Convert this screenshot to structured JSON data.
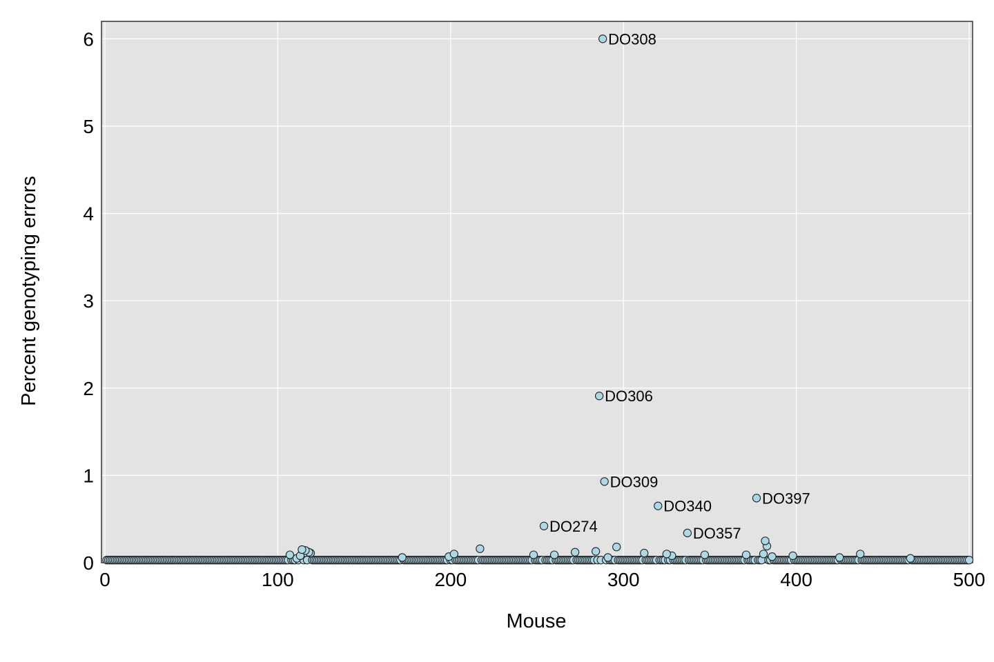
{
  "chart_data": {
    "type": "scatter",
    "title": "",
    "xlabel": "Mouse",
    "ylabel": "Percent genotyping errors",
    "xlim": [
      -2,
      502
    ],
    "ylim": [
      0,
      6.2
    ],
    "xticks": [
      0,
      100,
      200,
      300,
      400,
      500
    ],
    "yticks": [
      0,
      1,
      2,
      3,
      4,
      5,
      6
    ],
    "grid": true,
    "colors": {
      "panel": "#e3e3e3",
      "grid": "#ffffff",
      "point_fill": "#add8e6",
      "point_stroke": "#222222"
    },
    "baseline_value": 0.03,
    "points": [
      {
        "x": 107,
        "y": 0.09
      },
      {
        "x": 111,
        "y": 0.05
      },
      {
        "x": 113,
        "y": 0.08
      },
      {
        "x": 114,
        "y": 0.15
      },
      {
        "x": 116,
        "y": 0.14
      },
      {
        "x": 118,
        "y": 0.12
      },
      {
        "x": 119,
        "y": 0.11
      },
      {
        "x": 172,
        "y": 0.06
      },
      {
        "x": 199,
        "y": 0.07
      },
      {
        "x": 202,
        "y": 0.1
      },
      {
        "x": 217,
        "y": 0.16
      },
      {
        "x": 248,
        "y": 0.09
      },
      {
        "x": 254,
        "y": 0.42,
        "label": "DO274"
      },
      {
        "x": 260,
        "y": 0.09
      },
      {
        "x": 272,
        "y": 0.12
      },
      {
        "x": 284,
        "y": 0.13
      },
      {
        "x": 286,
        "y": 1.91,
        "label": "DO306"
      },
      {
        "x": 288,
        "y": 6.0,
        "label": "DO308"
      },
      {
        "x": 289,
        "y": 0.93,
        "label": "DO309"
      },
      {
        "x": 291,
        "y": 0.06
      },
      {
        "x": 296,
        "y": 0.18
      },
      {
        "x": 312,
        "y": 0.11
      },
      {
        "x": 320,
        "y": 0.65,
        "label": "DO340"
      },
      {
        "x": 325,
        "y": 0.1
      },
      {
        "x": 328,
        "y": 0.08
      },
      {
        "x": 337,
        "y": 0.34,
        "label": "DO357"
      },
      {
        "x": 347,
        "y": 0.09
      },
      {
        "x": 371,
        "y": 0.09
      },
      {
        "x": 377,
        "y": 0.74,
        "label": "DO397"
      },
      {
        "x": 381,
        "y": 0.1
      },
      {
        "x": 382,
        "y": 0.25
      },
      {
        "x": 383,
        "y": 0.19
      },
      {
        "x": 386,
        "y": 0.07
      },
      {
        "x": 398,
        "y": 0.08
      },
      {
        "x": 425,
        "y": 0.06
      },
      {
        "x": 437,
        "y": 0.1
      },
      {
        "x": 466,
        "y": 0.05
      }
    ]
  }
}
